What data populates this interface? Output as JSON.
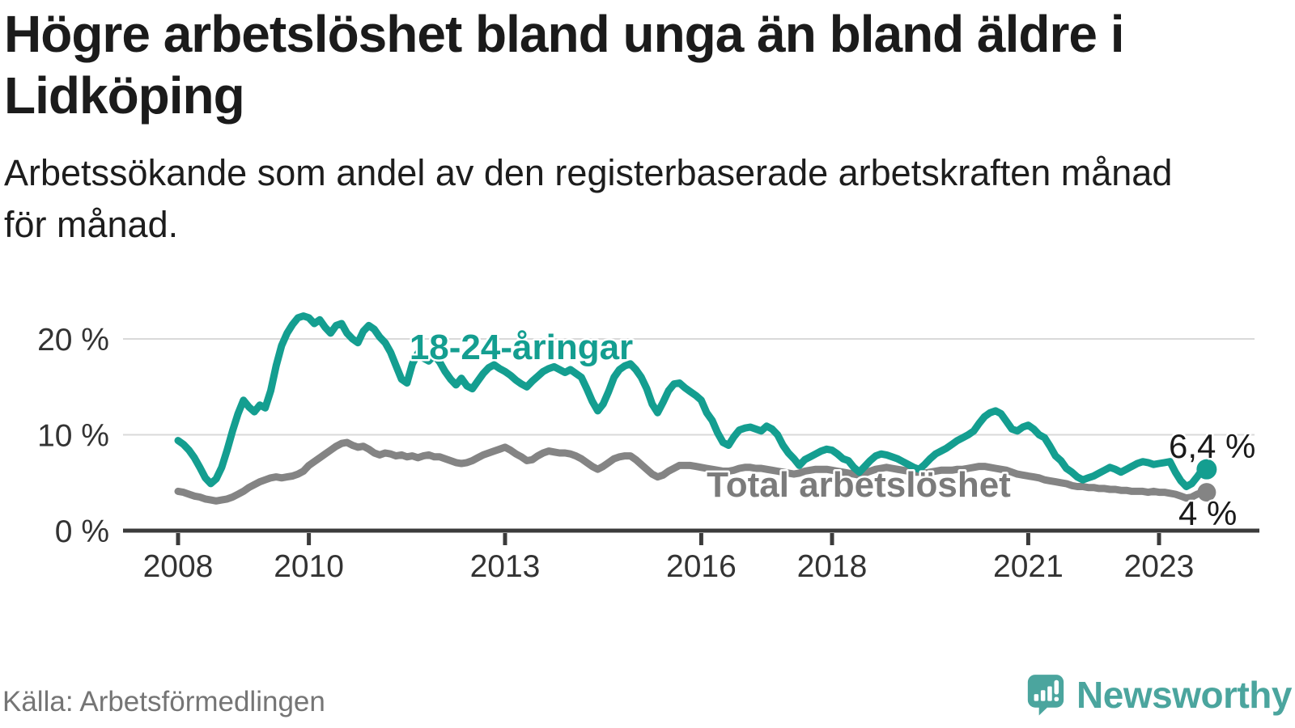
{
  "header": {
    "title_lines": [
      "Högre arbetslöshet bland unga än bland äldre i",
      "Lidköping"
    ],
    "subtitle_lines": [
      "Arbetssökande som andel av den registerbaserade arbetskraften månad",
      "för månad."
    ]
  },
  "footer": {
    "source": "Källa: Arbetsförmedlingen",
    "brand": "Newsworthy",
    "brand_icon": "newsworthy-speech-bubble-chart-icon",
    "brand_color": "#4ba59e"
  },
  "chart_data": {
    "type": "line",
    "title": "Arbetssökande som andel av den registerbaserade arbetskraften månad för månad",
    "unit": "percent",
    "start": "2008-01",
    "end": "2023-09",
    "frequency": "monthly",
    "ylim": [
      0,
      23.5
    ],
    "grid": "horizontal",
    "axis_color": "#3b3b3b",
    "gridline_color": "#d9d9d9",
    "tick_text_color": "#333333",
    "y_ticks": [
      {
        "value": 0,
        "label": "0 %"
      },
      {
        "value": 10,
        "label": "10 %"
      },
      {
        "value": 20,
        "label": "20 %"
      }
    ],
    "x_ticks": [
      2008,
      2010,
      2013,
      2016,
      2018,
      2021,
      2023
    ],
    "series": [
      {
        "name": "Total arbetslöshet",
        "color": "#848484",
        "label_color": "#7b7b7b",
        "end_label": "4 %",
        "end_value": 4.0,
        "values": [
          4.1,
          4.0,
          3.8,
          3.6,
          3.5,
          3.3,
          3.2,
          3.1,
          3.2,
          3.3,
          3.5,
          3.8,
          4.1,
          4.5,
          4.8,
          5.1,
          5.3,
          5.5,
          5.6,
          5.5,
          5.6,
          5.7,
          5.9,
          6.2,
          6.8,
          7.2,
          7.6,
          8.0,
          8.4,
          8.8,
          9.1,
          9.2,
          8.9,
          8.7,
          8.8,
          8.5,
          8.1,
          7.9,
          8.1,
          8.0,
          7.8,
          7.9,
          7.7,
          7.8,
          7.6,
          7.8,
          7.9,
          7.7,
          7.7,
          7.5,
          7.3,
          7.1,
          7.0,
          7.1,
          7.3,
          7.6,
          7.9,
          8.1,
          8.3,
          8.5,
          8.7,
          8.4,
          8.0,
          7.7,
          7.3,
          7.4,
          7.8,
          8.1,
          8.3,
          8.2,
          8.1,
          8.1,
          8.0,
          7.8,
          7.5,
          7.1,
          6.7,
          6.4,
          6.7,
          7.1,
          7.5,
          7.7,
          7.8,
          7.8,
          7.4,
          6.9,
          6.4,
          5.9,
          5.6,
          5.8,
          6.2,
          6.5,
          6.8,
          6.8,
          6.8,
          6.7,
          6.6,
          6.5,
          6.4,
          6.3,
          6.2,
          6.2,
          6.3,
          6.5,
          6.6,
          6.6,
          6.5,
          6.5,
          6.4,
          6.3,
          6.2,
          6.1,
          6.0,
          5.9,
          6.0,
          6.2,
          6.3,
          6.4,
          6.4,
          6.4,
          6.3,
          6.2,
          6.1,
          6.0,
          5.9,
          5.8,
          6.0,
          6.2,
          6.4,
          6.5,
          6.6,
          6.5,
          6.4,
          6.3,
          6.2,
          6.1,
          6.1,
          6.0,
          6.1,
          6.2,
          6.3,
          6.3,
          6.3,
          6.4,
          6.4,
          6.5,
          6.6,
          6.7,
          6.7,
          6.6,
          6.5,
          6.4,
          6.3,
          6.1,
          5.9,
          5.8,
          5.7,
          5.6,
          5.5,
          5.3,
          5.2,
          5.1,
          5.0,
          4.9,
          4.7,
          4.6,
          4.6,
          4.5,
          4.5,
          4.4,
          4.4,
          4.3,
          4.3,
          4.2,
          4.2,
          4.1,
          4.1,
          4.1,
          4.0,
          4.1,
          4.0,
          4.0,
          3.9,
          3.8,
          3.6,
          3.4,
          3.5,
          3.8,
          4.0
        ]
      },
      {
        "name": "18-24-åringar",
        "color": "#149e90",
        "label_color": "#149e90",
        "end_label": "6,4 %",
        "end_value": 6.4,
        "values": [
          9.4,
          9.0,
          8.4,
          7.6,
          6.6,
          5.5,
          4.9,
          5.4,
          6.6,
          8.4,
          10.4,
          12.2,
          13.6,
          12.9,
          12.4,
          13.1,
          12.8,
          14.6,
          17.2,
          19.3,
          20.6,
          21.5,
          22.2,
          22.4,
          22.2,
          21.6,
          22.0,
          21.2,
          20.6,
          21.4,
          21.6,
          20.6,
          20.0,
          19.6,
          20.8,
          21.4,
          21.0,
          20.2,
          19.6,
          18.6,
          17.2,
          15.8,
          15.4,
          17.4,
          18.5,
          18.0,
          17.7,
          18.3,
          17.6,
          16.6,
          15.8,
          15.2,
          15.9,
          15.1,
          14.8,
          15.6,
          16.4,
          17.0,
          17.3,
          16.9,
          16.6,
          16.2,
          15.7,
          15.3,
          15.0,
          15.6,
          16.1,
          16.6,
          16.9,
          17.1,
          16.8,
          16.5,
          16.8,
          16.4,
          16.0,
          14.8,
          13.5,
          12.5,
          13.2,
          14.5,
          16.0,
          16.8,
          17.2,
          17.4,
          16.8,
          16.0,
          14.8,
          13.2,
          12.3,
          13.4,
          14.6,
          15.3,
          15.4,
          14.9,
          14.5,
          14.1,
          13.6,
          12.3,
          11.5,
          10.2,
          9.2,
          8.9,
          9.8,
          10.5,
          10.7,
          10.8,
          10.6,
          10.4,
          10.9,
          10.6,
          10.0,
          8.9,
          8.1,
          7.5,
          6.8,
          7.4,
          7.7,
          8.0,
          8.3,
          8.5,
          8.4,
          8.0,
          7.5,
          7.3,
          6.6,
          6.1,
          6.7,
          7.3,
          7.8,
          8.0,
          7.9,
          7.7,
          7.5,
          7.2,
          6.9,
          6.6,
          6.4,
          6.9,
          7.5,
          8.0,
          8.3,
          8.6,
          9.0,
          9.4,
          9.7,
          10.0,
          10.4,
          11.2,
          11.9,
          12.3,
          12.5,
          12.2,
          11.4,
          10.6,
          10.4,
          10.8,
          11.0,
          10.6,
          10.0,
          9.7,
          8.8,
          7.8,
          7.3,
          6.5,
          6.1,
          5.6,
          5.3,
          5.5,
          5.7,
          6.0,
          6.3,
          6.6,
          6.4,
          6.1,
          6.4,
          6.7,
          7.0,
          7.2,
          7.1,
          6.9,
          7.0,
          7.1,
          7.2,
          6.1,
          5.2,
          4.6,
          4.9,
          5.6,
          6.4
        ]
      }
    ]
  }
}
